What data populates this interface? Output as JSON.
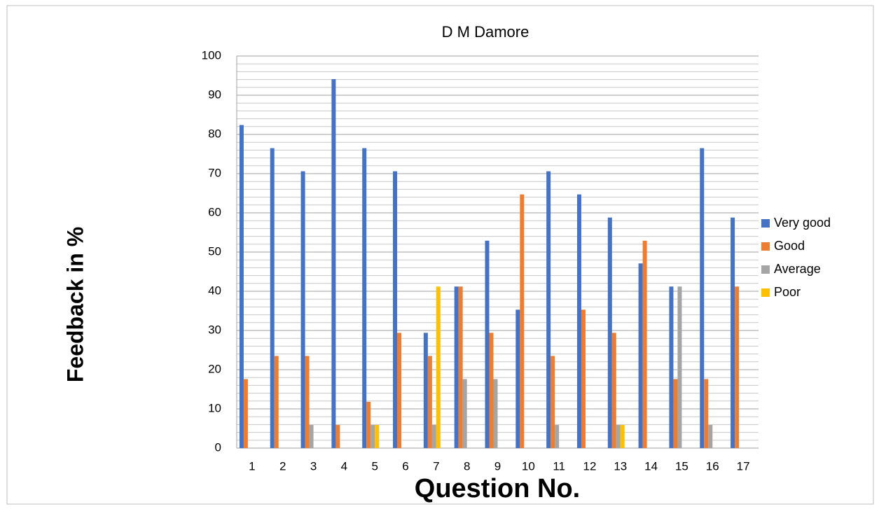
{
  "chart_data": {
    "type": "bar",
    "title": "D M Damore",
    "x_label": "Question No.",
    "y_label": "Feedback in %",
    "categories": [
      "1",
      "2",
      "3",
      "4",
      "5",
      "6",
      "7",
      "8",
      "9",
      "10",
      "11",
      "12",
      "13",
      "14",
      "15",
      "16",
      "17"
    ],
    "series": [
      {
        "name": "Very good",
        "color": "#4472c4",
        "values": [
          82.4,
          76.5,
          70.6,
          94.1,
          76.5,
          70.6,
          29.4,
          41.2,
          52.9,
          35.3,
          70.6,
          64.7,
          58.8,
          47.1,
          41.2,
          76.5,
          58.8
        ]
      },
      {
        "name": "Good",
        "color": "#ed7d31",
        "values": [
          17.6,
          23.5,
          23.5,
          5.9,
          11.8,
          29.4,
          23.5,
          41.2,
          29.4,
          64.7,
          23.5,
          35.3,
          29.4,
          52.9,
          17.6,
          17.6,
          41.2
        ]
      },
      {
        "name": "Average",
        "color": "#a5a5a5",
        "values": [
          0,
          0,
          5.9,
          0,
          5.9,
          0,
          5.9,
          17.6,
          17.6,
          0,
          5.9,
          0,
          5.9,
          0,
          41.2,
          5.9,
          0
        ]
      },
      {
        "name": "Poor",
        "color": "#ffc000",
        "values": [
          0,
          0,
          0,
          0,
          5.9,
          0,
          41.2,
          0,
          0,
          0,
          0,
          0,
          5.9,
          0,
          0,
          0,
          0
        ]
      }
    ],
    "ylim": [
      0,
      100
    ],
    "yticks": [
      0,
      10,
      20,
      30,
      40,
      50,
      60,
      70,
      80,
      90,
      100
    ],
    "yminorticks": [
      0,
      2,
      4,
      6,
      8,
      10,
      12,
      14,
      16,
      18,
      20,
      22,
      24,
      26,
      28,
      30,
      32,
      34,
      36,
      38,
      40,
      42,
      44,
      46,
      48,
      50,
      52,
      54,
      56,
      58,
      60,
      62,
      64,
      66,
      68,
      70,
      72,
      74,
      76,
      78,
      80,
      82,
      84,
      86,
      88,
      90,
      92,
      94,
      96,
      98,
      100
    ],
    "grid": true,
    "legend": "right"
  }
}
